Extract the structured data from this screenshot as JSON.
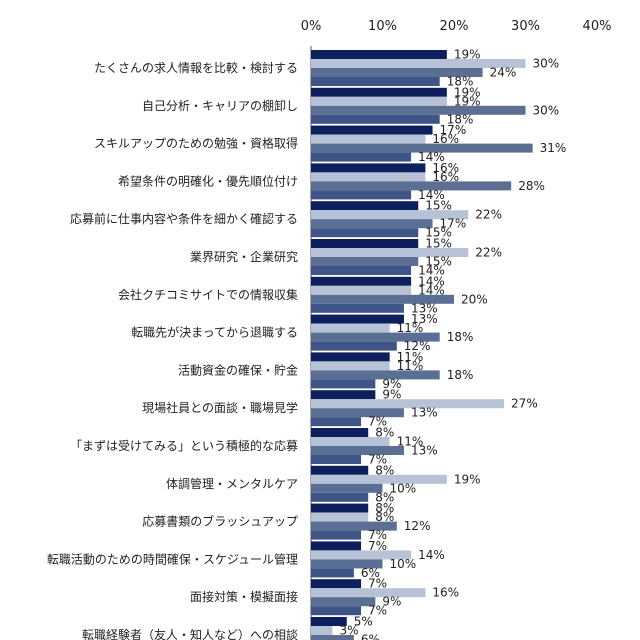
{
  "chart_data": {
    "type": "bar",
    "orientation": "horizontal",
    "xlim": [
      0,
      40
    ],
    "x_ticks": [
      "0%",
      "10%",
      "20%",
      "30%",
      "40%"
    ],
    "x_ticks_values": [
      0,
      10,
      20,
      30,
      40
    ],
    "unit": "%",
    "grid": false,
    "legend": "none",
    "categories": [
      "たくさんの求人情報を比較・検討する",
      "自己分析・キャリアの棚卸し",
      "スキルアップのための勉強・資格取得",
      "希望条件の明確化・優先順位付け",
      "応募前に仕事内容や条件を細かく確認する",
      "業界研究・企業研究",
      "会社クチコミサイトでの情報収集",
      "転職先が決まってから退職する",
      "活動資金の確保・貯金",
      "現場社員との面談・職場見学",
      "「まずは受けてみる」という積極的な応募",
      "体調管理・メンタルケア",
      "応募書類のブラッシュアップ",
      "転職活動のための時間確保・スケジュール管理",
      "面接対策・模擬面接",
      "転職経験者（友人・知人など）への相談"
    ],
    "series": [
      {
        "color": "#0d1f5c",
        "values": [
          19,
          19,
          17,
          16,
          15,
          15,
          14,
          13,
          11,
          9,
          8,
          8,
          8,
          7,
          7,
          5
        ]
      },
      {
        "color": "#b8c2d6",
        "values": [
          30,
          19,
          16,
          16,
          22,
          22,
          14,
          11,
          11,
          27,
          11,
          19,
          8,
          14,
          16,
          3
        ]
      },
      {
        "color": "#5b6f94",
        "values": [
          24,
          30,
          31,
          28,
          17,
          15,
          20,
          18,
          18,
          13,
          13,
          10,
          12,
          10,
          9,
          6
        ]
      },
      {
        "color": "#3f5587",
        "values": [
          18,
          18,
          14,
          14,
          15,
          14,
          13,
          12,
          9,
          7,
          7,
          8,
          7,
          6,
          7,
          5
        ]
      }
    ]
  }
}
